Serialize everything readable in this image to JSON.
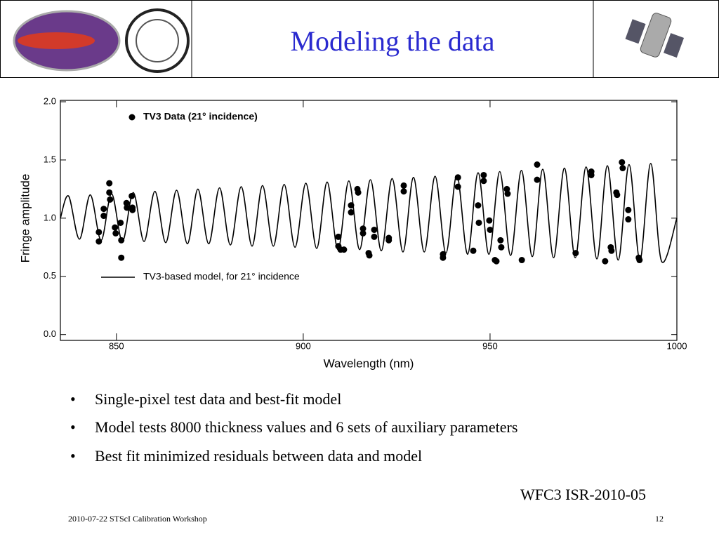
{
  "header": {
    "title": "Modeling the data"
  },
  "chart_data": {
    "type": "scatter",
    "xlabel": "Wavelength (nm)",
    "ylabel": "Fringe amplitude",
    "xlim": [
      835,
      1000
    ],
    "xticks": [
      850,
      900,
      950,
      1000
    ],
    "ylim": [
      -0.05,
      2.0
    ],
    "yticks": [
      {
        "value": 0,
        "label": "0.0"
      },
      0.5,
      {
        "value": 1,
        "label": "1.0"
      },
      1.5,
      {
        "value": 2,
        "label": "2.0"
      }
    ],
    "series": [
      {
        "name": "TV3 Data (21° incidence)",
        "type": "scatter",
        "color": "#000000",
        "x": [
          845.3,
          845.3,
          846.6,
          846.6,
          848.1,
          848.1,
          848.3,
          849.6,
          849.8,
          851.1,
          851.3,
          851.3,
          852.7,
          852.8,
          854.1,
          854.3,
          854.3,
          909.4,
          909.4,
          910.0,
          910.9,
          912.8,
          912.8,
          914.5,
          914.7,
          916.0,
          916.0,
          917.5,
          917.7,
          919.0,
          919.0,
          922.9,
          922.9,
          926.9,
          926.9,
          937.4,
          937.4,
          941.4,
          941.4,
          945.5,
          946.8,
          947.0,
          948.3,
          948.3,
          949.8,
          950.0,
          951.3,
          951.7,
          952.8,
          953.0,
          954.5,
          954.7,
          958.5,
          962.6,
          962.6,
          972.9,
          977.1,
          977.1,
          980.8,
          982.3,
          982.5,
          983.8,
          984.0,
          985.3,
          985.5,
          987.0,
          987.0,
          989.8,
          990.0
        ],
        "values": [
          0.88,
          0.8,
          1.08,
          1.02,
          1.3,
          1.22,
          1.16,
          0.92,
          0.87,
          0.96,
          0.81,
          0.66,
          1.13,
          1.09,
          1.19,
          1.09,
          1.07,
          0.84,
          0.76,
          0.73,
          0.73,
          1.11,
          1.05,
          1.25,
          1.22,
          0.91,
          0.87,
          0.7,
          0.68,
          0.9,
          0.84,
          0.83,
          0.81,
          1.28,
          1.23,
          0.69,
          0.66,
          1.35,
          1.27,
          0.72,
          1.11,
          0.96,
          1.37,
          1.32,
          0.98,
          0.9,
          0.64,
          0.63,
          0.81,
          0.75,
          1.25,
          1.21,
          0.64,
          1.46,
          1.33,
          0.7,
          1.4,
          1.37,
          0.63,
          0.75,
          0.72,
          1.22,
          1.2,
          1.48,
          1.43,
          1.07,
          0.99,
          0.66,
          0.64
        ]
      },
      {
        "name": "TV3-based model, for 21° incidence",
        "type": "line",
        "color": "#000000",
        "x": [
          835,
          837.2,
          840.1,
          843.0,
          845.9,
          848.7,
          851.6,
          854.5,
          857.4,
          860.3,
          863.2,
          866.1,
          869.0,
          871.8,
          874.7,
          877.6,
          880.5,
          883.4,
          886.3,
          889.1,
          892.0,
          894.9,
          897.8,
          900.7,
          903.6,
          906.4,
          909.3,
          912.2,
          915.1,
          918.0,
          920.9,
          923.8,
          926.7,
          929.5,
          932.4,
          935.3,
          938.2,
          941.1,
          944.0,
          946.8,
          949.7,
          952.6,
          955.5,
          958.4,
          961.3,
          964.1,
          967.0,
          969.9,
          972.8,
          975.7,
          978.6,
          981.4,
          984.3,
          987.2,
          990.1,
          993.0,
          995.9,
          1000
        ],
        "values": [
          1.0,
          1.19,
          0.82,
          1.2,
          0.81,
          1.21,
          0.8,
          1.22,
          0.8,
          1.23,
          0.79,
          1.24,
          0.78,
          1.25,
          0.78,
          1.26,
          0.77,
          1.27,
          0.76,
          1.28,
          0.76,
          1.29,
          0.75,
          1.3,
          0.74,
          1.31,
          0.73,
          1.32,
          0.73,
          1.33,
          0.72,
          1.34,
          0.71,
          1.35,
          0.71,
          1.36,
          0.7,
          1.37,
          0.69,
          1.39,
          0.69,
          1.4,
          0.68,
          1.41,
          0.67,
          1.42,
          0.66,
          1.43,
          0.66,
          1.44,
          0.65,
          1.45,
          0.64,
          1.46,
          0.64,
          1.47,
          0.63,
          1.0
        ]
      }
    ]
  },
  "bullets": [
    "Single-pixel test data and best-fit model",
    "Model tests 8000 thickness values and 6 sets of auxiliary parameters",
    "Best fit minimized residuals between data and model"
  ],
  "reference": "WFC3 ISR-2010-05",
  "footer": {
    "left": "2010-07-22 STScI Calibration Workshop",
    "page": "12"
  }
}
